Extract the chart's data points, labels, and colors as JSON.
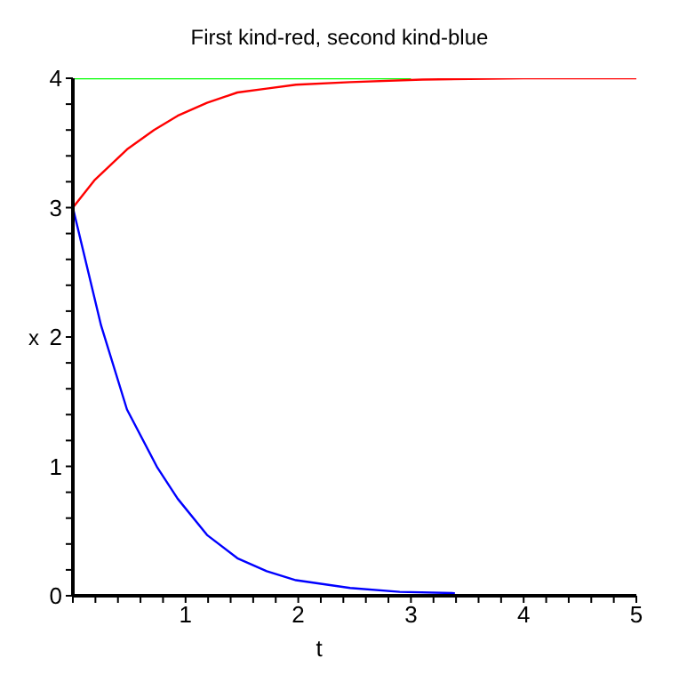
{
  "chart_data": {
    "type": "line",
    "title": "First kind-red, second kind-blue",
    "xlabel": "t",
    "ylabel": "x",
    "xlim": [
      0,
      5
    ],
    "ylim": [
      0,
      4
    ],
    "xticks": [
      {
        "value": 0,
        "label": null
      },
      {
        "value": 0.2,
        "label": null
      },
      {
        "value": 0.4,
        "label": null
      },
      {
        "value": 0.6,
        "label": null
      },
      {
        "value": 0.8,
        "label": null
      },
      1,
      {
        "value": 1.2,
        "label": null
      },
      {
        "value": 1.4,
        "label": null
      },
      {
        "value": 1.6,
        "label": null
      },
      {
        "value": 1.8,
        "label": null
      },
      2,
      {
        "value": 2.2,
        "label": null
      },
      {
        "value": 2.4,
        "label": null
      },
      {
        "value": 2.6,
        "label": null
      },
      {
        "value": 2.8,
        "label": null
      },
      3,
      {
        "value": 3.2,
        "label": null
      },
      {
        "value": 3.4,
        "label": null
      },
      {
        "value": 3.6,
        "label": null
      },
      {
        "value": 3.8,
        "label": null
      },
      4,
      {
        "value": 4.2,
        "label": null
      },
      {
        "value": 4.4,
        "label": null
      },
      {
        "value": 4.6,
        "label": null
      },
      {
        "value": 4.8,
        "label": null
      },
      5
    ],
    "yticks": [
      0,
      {
        "value": 0.2,
        "label": null
      },
      {
        "value": 0.4,
        "label": null
      },
      {
        "value": 0.6,
        "label": null
      },
      {
        "value": 0.8,
        "label": null
      },
      1,
      {
        "value": 1.2,
        "label": null
      },
      {
        "value": 1.4,
        "label": null
      },
      {
        "value": 1.6,
        "label": null
      },
      {
        "value": 1.8,
        "label": null
      },
      2,
      {
        "value": 2.2,
        "label": null
      },
      {
        "value": 2.4,
        "label": null
      },
      {
        "value": 2.6,
        "label": null
      },
      {
        "value": 2.8,
        "label": null
      },
      3,
      {
        "value": 3.2,
        "label": null
      },
      {
        "value": 3.4,
        "label": null
      },
      {
        "value": 3.6,
        "label": null
      },
      {
        "value": 3.8,
        "label": null
      },
      4
    ],
    "grid": false,
    "legend": false,
    "marker": "none",
    "line_style": "solid",
    "series": [
      {
        "color": "#00ff00",
        "x": [
          0,
          3
        ],
        "values": [
          4,
          4
        ]
      },
      {
        "color": "#ff0000",
        "x": [
          0,
          0.19,
          0.48,
          0.72,
          0.93,
          1.19,
          1.46,
          1.72,
          1.98,
          2.46,
          3.1,
          4,
          5
        ],
        "values": [
          3,
          3.21,
          3.45,
          3.6,
          3.71,
          3.81,
          3.89,
          3.92,
          3.95,
          3.97,
          3.99,
          4,
          4
        ]
      },
      {
        "color": "#0000ff",
        "x": [
          0,
          0.25,
          0.48,
          0.75,
          0.93,
          1.19,
          1.46,
          1.72,
          1.98,
          2.46,
          2.9,
          3.39
        ],
        "values": [
          3,
          2.09,
          1.44,
          0.99,
          0.75,
          0.47,
          0.29,
          0.19,
          0.12,
          0.06,
          0.03,
          0.02
        ]
      }
    ]
  }
}
